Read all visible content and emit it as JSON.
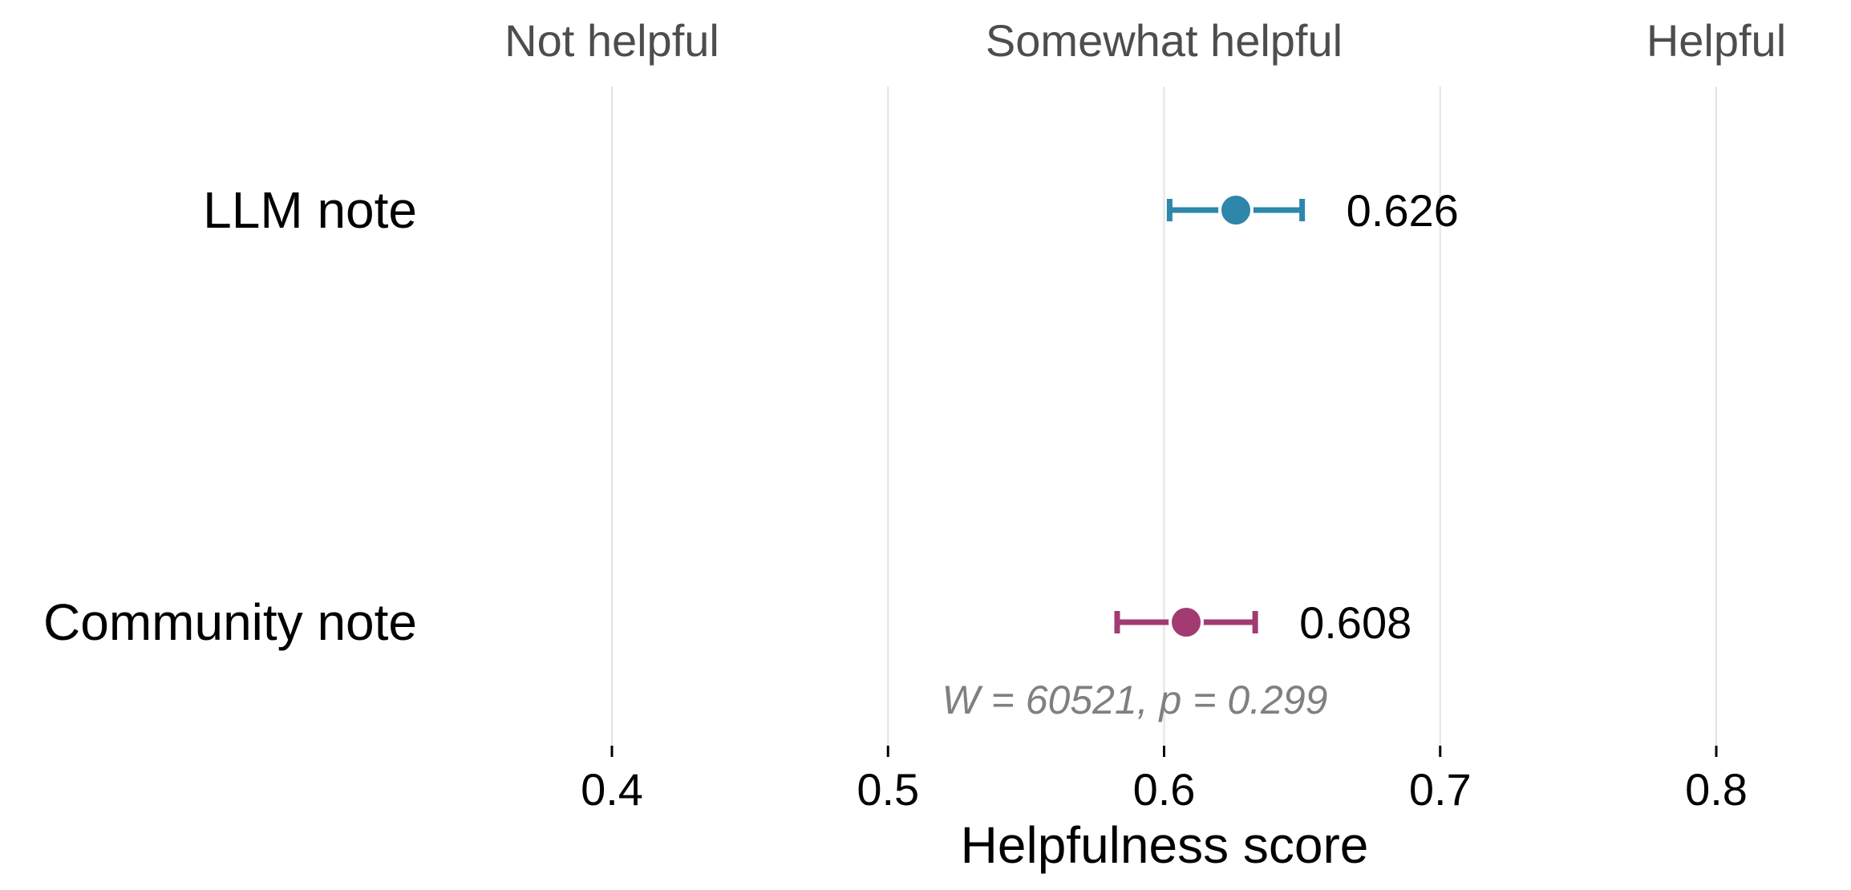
{
  "chart_data": {
    "type": "scatter",
    "xlabel": "Helpfulness score",
    "xlim": [
      0.35,
      0.85
    ],
    "xticks": [
      0.4,
      0.5,
      0.6,
      0.7,
      0.8
    ],
    "xtick_labels": [
      "0.4",
      "0.5",
      "0.6",
      "0.7",
      "0.8"
    ],
    "grid": true,
    "top_labels": [
      {
        "x": 0.4,
        "text": "Not helpful"
      },
      {
        "x": 0.6,
        "text": "Somewhat helpful"
      },
      {
        "x": 0.8,
        "text": "Helpful"
      }
    ],
    "categories": [
      "LLM note",
      "Community note"
    ],
    "series": [
      {
        "category": "LLM note",
        "value": 0.626,
        "ci": [
          0.602,
          0.65
        ],
        "label": "0.626",
        "color": "#2e86ab"
      },
      {
        "category": "Community note",
        "value": 0.608,
        "ci": [
          0.583,
          0.633
        ],
        "label": "0.608",
        "color": "#a23b72"
      }
    ],
    "annotation": "W = 60521, p = 0.299"
  }
}
